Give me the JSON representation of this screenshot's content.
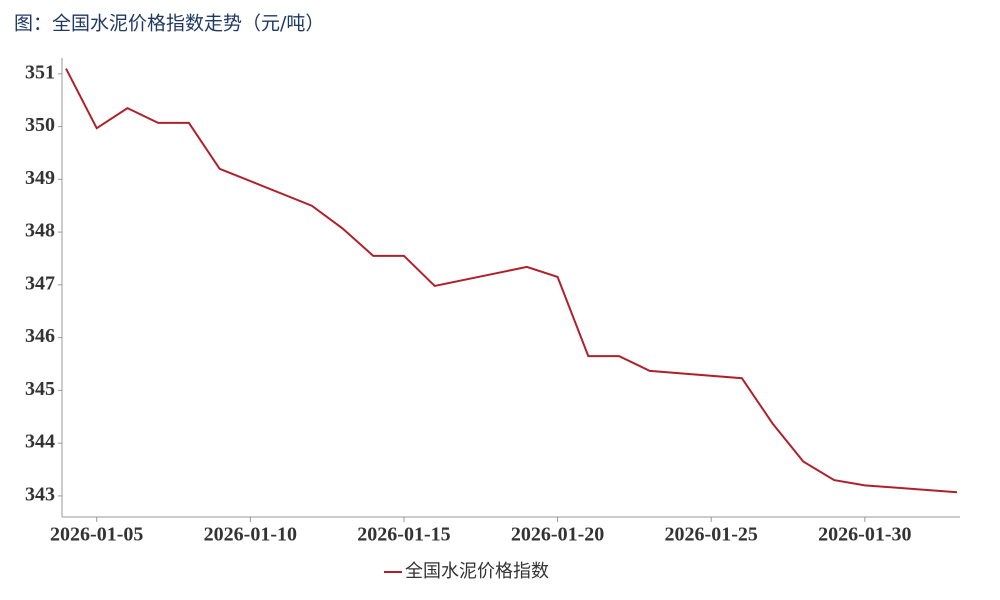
{
  "chart_data": {
    "type": "line",
    "title": "图：全国水泥价格指数走势（元/吨）",
    "x": [
      "2026-01-04",
      "2026-01-05",
      "2026-01-06",
      "2026-01-07",
      "2026-01-08",
      "2026-01-09",
      "2026-01-12",
      "2026-01-13",
      "2026-01-14",
      "2026-01-15",
      "2026-01-16",
      "2026-01-19",
      "2026-01-20",
      "2026-01-21",
      "2026-01-22",
      "2026-01-23",
      "2026-01-26",
      "2026-01-27",
      "2026-01-28",
      "2026-01-29",
      "2026-01-30",
      "2026-02-02"
    ],
    "series": [
      {
        "name": "全国水泥价格指数",
        "color": "#b0202a",
        "values": [
          351.1,
          349.97,
          350.35,
          350.07,
          350.07,
          349.2,
          348.5,
          348.07,
          347.55,
          347.55,
          346.98,
          347.34,
          347.15,
          345.65,
          345.65,
          345.37,
          345.23,
          344.37,
          343.65,
          343.3,
          343.2,
          343.07
        ]
      }
    ],
    "xlim": [
      "2026-01-04",
      "2026-02-02"
    ],
    "xticks": [
      "2026-01-05",
      "2026-01-10",
      "2026-01-15",
      "2026-01-20",
      "2026-01-25",
      "2026-01-30"
    ],
    "ylim": [
      342.6,
      351.3
    ],
    "yticks": [
      343,
      344,
      345,
      346,
      347,
      348,
      349,
      350,
      351
    ],
    "grid": false,
    "legend": "bottom"
  }
}
